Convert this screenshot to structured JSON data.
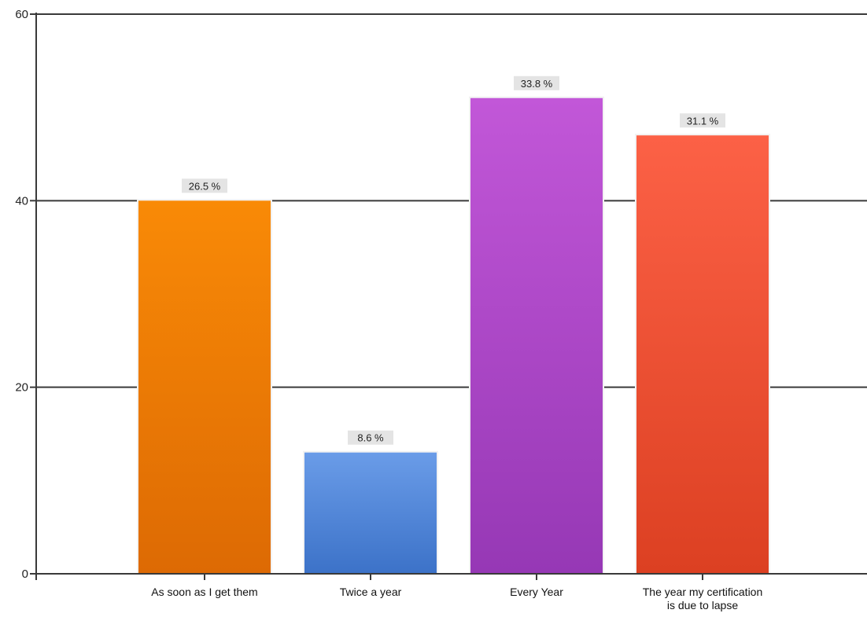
{
  "chart_data": {
    "type": "bar",
    "categories": [
      [
        "As soon as I get them"
      ],
      [
        "Twice a year"
      ],
      [
        "Every Year"
      ],
      [
        "The year my certification",
        "is due to lapse"
      ]
    ],
    "values": [
      40,
      13,
      51,
      47
    ],
    "data_labels": [
      "26.5 %",
      "8.6 %",
      "33.8 %",
      "31.1 %"
    ],
    "ylim": [
      0,
      60
    ],
    "yticks": [
      0,
      20,
      40,
      60
    ],
    "grid": true,
    "legend": "none",
    "colors": [
      [
        "#f98a06",
        "#dd6a04"
      ],
      [
        "#6a9ce8",
        "#3c72c8"
      ],
      [
        "#c257d8",
        "#9638b5"
      ],
      [
        "#fc6146",
        "#dc4022"
      ]
    ],
    "label_bg": "#e4e4e4"
  }
}
